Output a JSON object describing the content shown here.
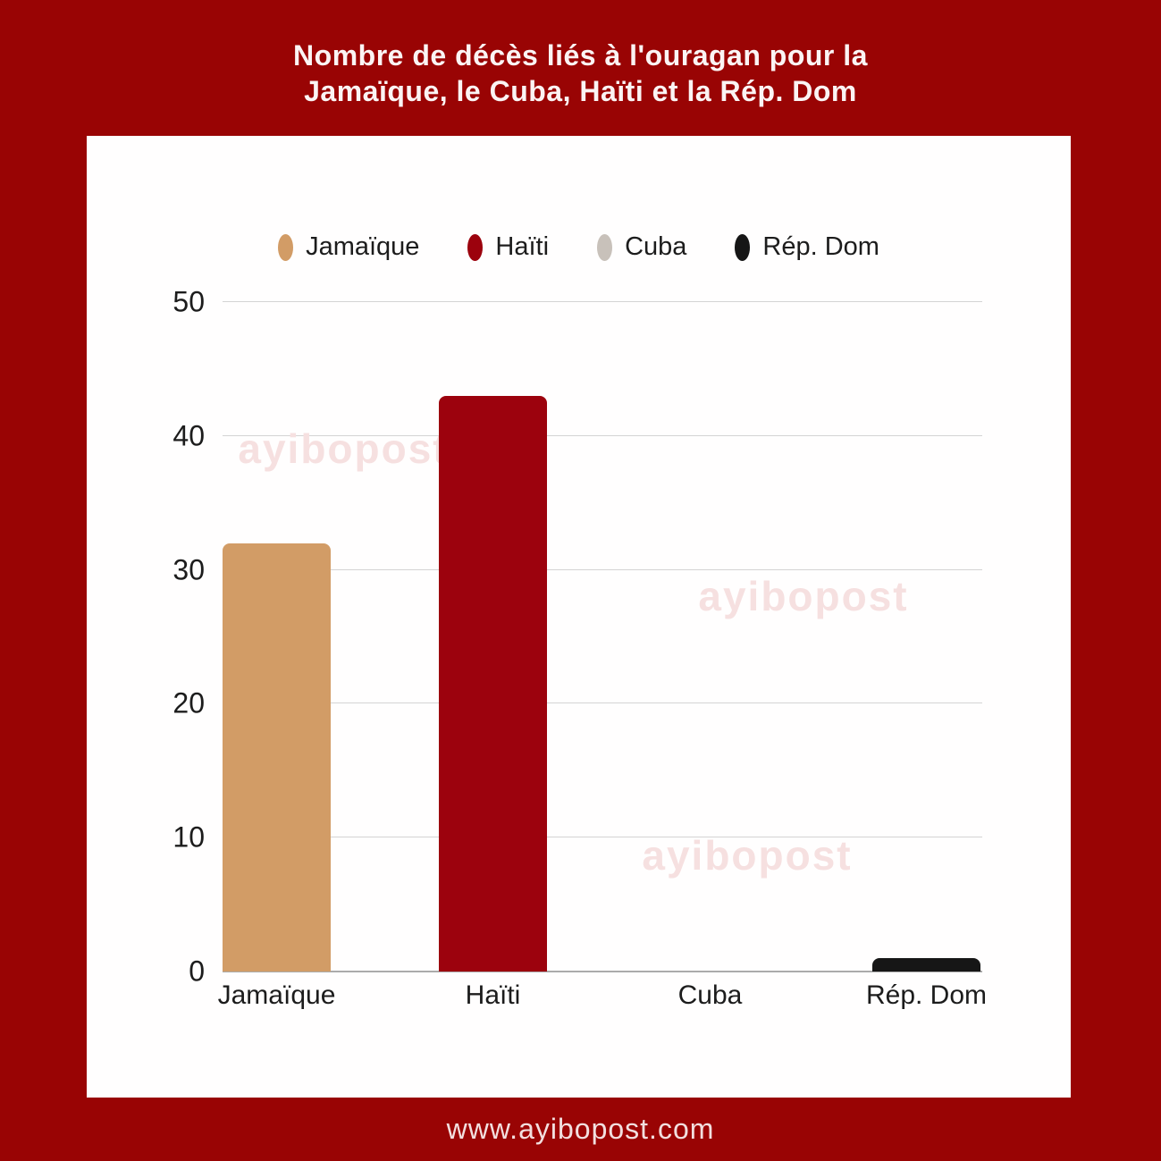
{
  "title": {
    "line1": "Nombre de décès liés à l'ouragan pour la",
    "line2": "Jamaïque, le Cuba, Haïti et la Rép. Dom"
  },
  "legend": [
    {
      "label": "Jamaïque",
      "color": "#D29C66"
    },
    {
      "label": "Haïti",
      "color": "#9C020D"
    },
    {
      "label": "Cuba",
      "color": "#C8C1BA"
    },
    {
      "label": "Rép. Dom",
      "color": "#161616"
    }
  ],
  "chart_data": {
    "type": "bar",
    "title": "Nombre de décès liés à l'ouragan pour la Jamaïque, le Cuba, Haïti et la Rép. Dom",
    "categories": [
      "Jamaïque",
      "Haïti",
      "Cuba",
      "Rép. Dom"
    ],
    "values": [
      32,
      43,
      0,
      1
    ],
    "bar_colors": [
      "#D29C66",
      "#9C020D",
      "#C8C1BA",
      "#161616"
    ],
    "xlabel": "",
    "ylabel": "",
    "ylim": [
      0,
      50
    ],
    "yticks": [
      0,
      10,
      20,
      30,
      40,
      50
    ],
    "grid": true,
    "legend_position": "top"
  },
  "watermark": {
    "text": "ayibopost"
  },
  "footer": {
    "url": "www.ayibopost.com"
  },
  "colors": {
    "background": "#990404",
    "card": "#FFFEFE",
    "title_text": "#FBF4F4",
    "axis_text": "#1C1C1C",
    "gridline": "#D4D4D4",
    "watermark": "#F6E0E0",
    "footer_text": "#F2DFDF"
  }
}
